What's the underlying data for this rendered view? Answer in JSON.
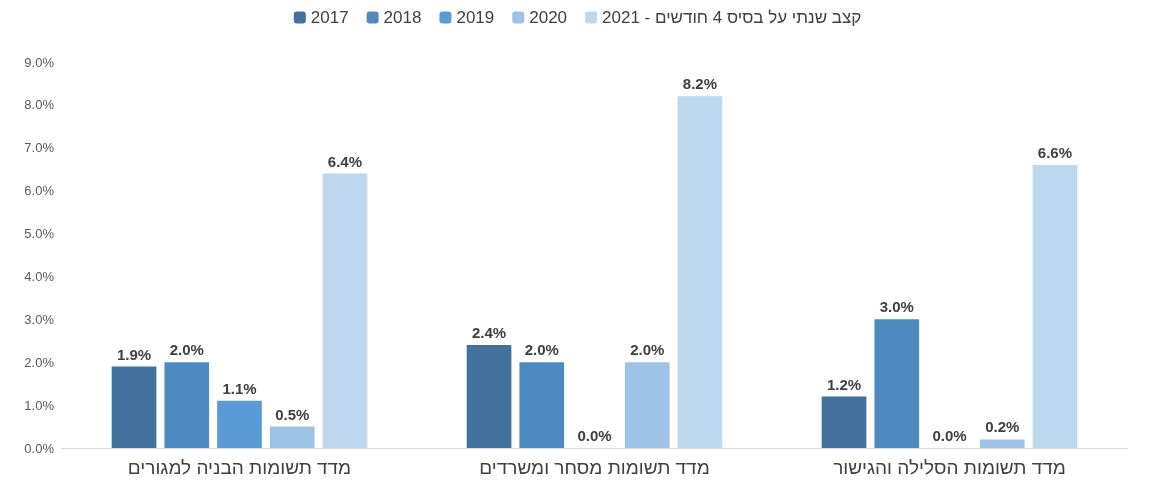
{
  "chart_data": {
    "type": "bar",
    "categories": [
      "מדד תשומות הבניה למגורים",
      "מדד תשומות מסחר ומשרדים",
      "מדד תשומות הסלילה והגישור"
    ],
    "series": [
      {
        "name": "2017",
        "color": "#41719c",
        "values": [
          1.9,
          2.4,
          1.2
        ],
        "value_labels": [
          "1.9%",
          "2.4%",
          "1.2%"
        ]
      },
      {
        "name": "2018",
        "color": "#4e89bf",
        "values": [
          2.0,
          2.0,
          3.0
        ],
        "value_labels": [
          "2.0%",
          "2.0%",
          "3.0%"
        ]
      },
      {
        "name": "2019",
        "color": "#5b9bd5",
        "values": [
          1.1,
          0.0,
          0.0
        ],
        "value_labels": [
          "1.1%",
          "0.0%",
          "0.0%"
        ]
      },
      {
        "name": "2020",
        "color": "#9dc3e6",
        "values": [
          0.5,
          2.0,
          0.2
        ],
        "value_labels": [
          "0.5%",
          "2.0%",
          "0.2%"
        ]
      },
      {
        "name": "2021 - קצב שנתי על בסיס 4 חודשים",
        "color": "#bdd7ee",
        "values": [
          6.4,
          8.2,
          6.6
        ],
        "value_labels": [
          "6.4%",
          "8.2%",
          "6.6%"
        ]
      }
    ],
    "ylim": [
      0,
      9
    ],
    "yticks": [
      {
        "value": 0,
        "label": "0.0%"
      },
      {
        "value": 1,
        "label": "1.0%"
      },
      {
        "value": 2,
        "label": "2.0%"
      },
      {
        "value": 3,
        "label": "3.0%"
      },
      {
        "value": 4,
        "label": "4.0%"
      },
      {
        "value": 5,
        "label": "5.0%"
      },
      {
        "value": 6,
        "label": "6.0%"
      },
      {
        "value": 7,
        "label": "7.0%"
      },
      {
        "value": 8,
        "label": "8.0%"
      },
      {
        "value": 9,
        "label": "9.0%"
      }
    ],
    "grid": false,
    "legend": "top"
  }
}
